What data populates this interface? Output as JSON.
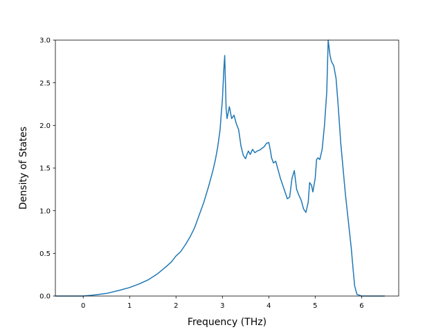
{
  "chart_data": {
    "type": "line",
    "title": "",
    "xlabel": "Frequency (THz)",
    "ylabel": "Density of States",
    "xlim": [
      -0.6,
      6.8
    ],
    "ylim": [
      0.0,
      3.0
    ],
    "xticks": [
      0,
      1,
      2,
      3,
      4,
      5,
      6
    ],
    "yticks": [
      0.0,
      0.5,
      1.0,
      1.5,
      2.0,
      2.5,
      3.0
    ],
    "xtick_labels": [
      "0",
      "1",
      "2",
      "3",
      "4",
      "5",
      "6"
    ],
    "ytick_labels": [
      "0.0",
      "0.5",
      "1.0",
      "1.5",
      "2.0",
      "2.5",
      "3.0"
    ],
    "grid": false,
    "legend": "none",
    "series": [
      {
        "color": "#1f77b4",
        "x": [
          -0.6,
          0.0,
          0.2,
          0.5,
          0.8,
          1.0,
          1.2,
          1.4,
          1.6,
          1.8,
          1.9,
          2.0,
          2.1,
          2.2,
          2.3,
          2.4,
          2.5,
          2.6,
          2.7,
          2.75,
          2.8,
          2.85,
          2.9,
          2.95,
          2.97,
          3.0,
          3.03,
          3.05,
          3.08,
          3.1,
          3.15,
          3.2,
          3.25,
          3.3,
          3.35,
          3.4,
          3.45,
          3.5,
          3.53,
          3.56,
          3.6,
          3.65,
          3.7,
          3.75,
          3.8,
          3.85,
          3.9,
          3.95,
          4.0,
          4.03,
          4.06,
          4.1,
          4.15,
          4.2,
          4.25,
          4.3,
          4.35,
          4.4,
          4.45,
          4.5,
          4.55,
          4.6,
          4.65,
          4.7,
          4.75,
          4.8,
          4.85,
          4.88,
          4.92,
          4.95,
          5.0,
          5.03,
          5.06,
          5.1,
          5.15,
          5.2,
          5.25,
          5.28,
          5.32,
          5.35,
          5.4,
          5.45,
          5.5,
          5.55,
          5.6,
          5.65,
          5.7,
          5.75,
          5.78,
          5.8,
          5.85,
          5.9,
          6.0,
          6.2,
          6.5
        ],
        "y": [
          0.0,
          0.0,
          0.01,
          0.03,
          0.07,
          0.1,
          0.14,
          0.19,
          0.26,
          0.35,
          0.4,
          0.47,
          0.52,
          0.6,
          0.69,
          0.8,
          0.95,
          1.1,
          1.28,
          1.38,
          1.48,
          1.6,
          1.75,
          1.95,
          2.1,
          2.3,
          2.65,
          2.82,
          2.2,
          2.08,
          2.22,
          2.08,
          2.12,
          2.02,
          1.95,
          1.76,
          1.65,
          1.61,
          1.66,
          1.7,
          1.66,
          1.72,
          1.68,
          1.7,
          1.71,
          1.73,
          1.75,
          1.79,
          1.8,
          1.72,
          1.62,
          1.56,
          1.58,
          1.48,
          1.38,
          1.3,
          1.22,
          1.14,
          1.16,
          1.38,
          1.47,
          1.25,
          1.18,
          1.12,
          1.02,
          0.98,
          1.1,
          1.33,
          1.3,
          1.22,
          1.38,
          1.6,
          1.62,
          1.6,
          1.72,
          2.0,
          2.4,
          3.0,
          2.82,
          2.75,
          2.7,
          2.55,
          2.2,
          1.8,
          1.5,
          1.2,
          0.95,
          0.7,
          0.55,
          0.42,
          0.12,
          0.02,
          0.0,
          0.0,
          0.0
        ]
      }
    ]
  }
}
